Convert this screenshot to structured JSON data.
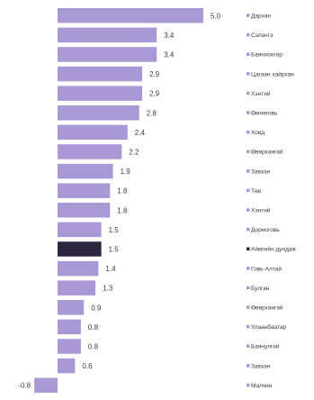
{
  "chart_data": {
    "type": "bar",
    "orientation": "horizontal",
    "title": "",
    "xlabel": "",
    "ylabel": "",
    "grid": false,
    "legend": "right",
    "xlim": [
      -0.8,
      5.0
    ],
    "colors": {
      "default": "#a899d6",
      "highlight": "#2e2640"
    },
    "categories": [
      "Дархан",
      "Сэлэнгэ",
      "Баянхонгор",
      "Цагаан хайрхан",
      "Хэнтий",
      "Өмнөговь",
      "Ховд",
      "Өвөрхангай",
      "Завхан",
      "Төв",
      "Хэнтий",
      "Дорноговь",
      "Аймгийн дундаж",
      "Говь-Алтай",
      "Булган",
      "Өвөрхангай",
      "Улаанбаатар",
      "Баянулгий",
      "Завхан",
      "Малчин"
    ],
    "values": [
      5.0,
      3.4,
      3.4,
      2.9,
      2.9,
      2.8,
      2.4,
      2.2,
      1.9,
      1.8,
      1.8,
      1.5,
      1.5,
      1.4,
      1.3,
      0.9,
      0.8,
      0.8,
      0.6,
      -0.8
    ],
    "value_labels": [
      "5.0",
      "3.4",
      "3.4",
      "2.9",
      "2.9",
      "2.8",
      "2.4",
      "2.2",
      "1.9",
      "1.8",
      "1.8",
      "1.5",
      "1.5",
      "1.4",
      "1.3",
      "0.9",
      "0.8",
      "0.8",
      "0.6",
      "-0.8"
    ],
    "highlight_index": 12
  }
}
